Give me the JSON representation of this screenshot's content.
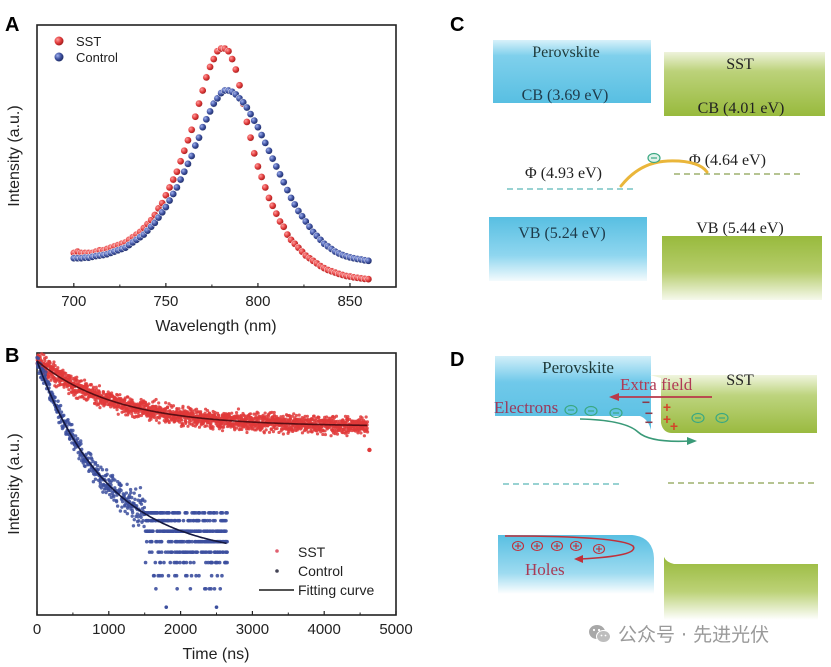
{
  "panels": {
    "A": {
      "letter": "A"
    },
    "B": {
      "letter": "B"
    },
    "C": {
      "letter": "C"
    },
    "D": {
      "letter": "D"
    }
  },
  "colors": {
    "sst_red": "#e03a3a",
    "control_blue": "#3c4f9e",
    "fit_dark": "#1a1a40",
    "perovskite_blue": "#5ec3e6",
    "sst_green": "#9dbf45",
    "arrow_orange": "#e8b030",
    "electron_green": "#3aa882",
    "text_red": "#b03040",
    "field_red": "#c0392b"
  },
  "chart_data": [
    {
      "id": "A",
      "type": "scatter",
      "title": "",
      "xlabel": "Wavelength (nm)",
      "ylabel": "Intensity (a.u.)",
      "xlim": [
        680,
        875
      ],
      "ylim": [
        0,
        1
      ],
      "xticks": [
        700,
        750,
        800,
        850
      ],
      "xtick_labels": [
        "700",
        "750",
        "800",
        "850"
      ],
      "yticks": [],
      "grid": false,
      "legend": {
        "position": "top-left",
        "entries": [
          "SST",
          "Control"
        ]
      },
      "x_start": 700,
      "x_step": 2,
      "series": [
        {
          "name": "SST",
          "color": "#e03a3a",
          "values": [
            0.13,
            0.135,
            0.13,
            0.13,
            0.13,
            0.13,
            0.135,
            0.14,
            0.14,
            0.145,
            0.15,
            0.155,
            0.16,
            0.165,
            0.17,
            0.18,
            0.19,
            0.2,
            0.21,
            0.225,
            0.24,
            0.255,
            0.275,
            0.3,
            0.32,
            0.35,
            0.38,
            0.41,
            0.44,
            0.48,
            0.52,
            0.56,
            0.6,
            0.65,
            0.7,
            0.75,
            0.8,
            0.84,
            0.87,
            0.9,
            0.91,
            0.91,
            0.9,
            0.87,
            0.83,
            0.77,
            0.7,
            0.63,
            0.57,
            0.51,
            0.46,
            0.42,
            0.38,
            0.34,
            0.31,
            0.28,
            0.25,
            0.23,
            0.2,
            0.18,
            0.165,
            0.15,
            0.135,
            0.12,
            0.11,
            0.1,
            0.09,
            0.08,
            0.072,
            0.065,
            0.06,
            0.055,
            0.05,
            0.046,
            0.042,
            0.04,
            0.037,
            0.035,
            0.033,
            0.031,
            0.03
          ]
        },
        {
          "name": "Control",
          "color": "#3c4f9e",
          "values": [
            0.11,
            0.11,
            0.11,
            0.112,
            0.112,
            0.115,
            0.118,
            0.12,
            0.122,
            0.125,
            0.13,
            0.135,
            0.14,
            0.145,
            0.15,
            0.16,
            0.17,
            0.18,
            0.19,
            0.2,
            0.215,
            0.23,
            0.245,
            0.265,
            0.285,
            0.305,
            0.33,
            0.355,
            0.38,
            0.41,
            0.44,
            0.47,
            0.5,
            0.54,
            0.57,
            0.61,
            0.64,
            0.67,
            0.7,
            0.72,
            0.74,
            0.75,
            0.75,
            0.745,
            0.735,
            0.72,
            0.705,
            0.685,
            0.66,
            0.635,
            0.61,
            0.58,
            0.55,
            0.52,
            0.49,
            0.46,
            0.43,
            0.4,
            0.37,
            0.34,
            0.315,
            0.29,
            0.27,
            0.25,
            0.23,
            0.21,
            0.195,
            0.18,
            0.165,
            0.155,
            0.145,
            0.135,
            0.128,
            0.122,
            0.117,
            0.113,
            0.11,
            0.107,
            0.105,
            0.102,
            0.1
          ]
        }
      ]
    },
    {
      "id": "B",
      "type": "scatter",
      "title": "",
      "xlabel": "Time (ns)",
      "ylabel": "Intensity (a.u.)",
      "xlim": [
        0,
        5000
      ],
      "ylim": [
        0,
        1
      ],
      "xticks": [
        0,
        1000,
        2000,
        3000,
        4000,
        5000
      ],
      "xtick_labels": [
        "0",
        "1000",
        "2000",
        "3000",
        "4000",
        "5000"
      ],
      "yticks": [],
      "grid": false,
      "legend": {
        "position": "bottom-right",
        "entries": [
          "SST",
          "Control",
          "Fitting curve"
        ]
      },
      "series": [
        {
          "name": "SST",
          "color": "#e03a3a",
          "t_range": [
            0,
            4600
          ],
          "fit": {
            "model": "y0 + A*exp(-t/tau)",
            "y0": 0.72,
            "A": 0.25,
            "tau_ns": 1100
          },
          "noise": 0.03,
          "outlier": [
            4630,
            0.63
          ]
        },
        {
          "name": "Control",
          "color": "#3c4f9e",
          "t_range": [
            0,
            2650
          ],
          "fit": {
            "model": "y0 + A*exp(-t/tau)",
            "y0": 0.22,
            "A": 0.75,
            "tau_ns": 1000
          },
          "noise": 0.06,
          "quantized_levels": [
            0.39,
            0.36,
            0.32,
            0.28,
            0.24,
            0.2,
            0.15,
            0.1,
            0.03
          ]
        },
        {
          "name": "Fitting curve",
          "color": "#1a1a40",
          "curves": [
            "SST",
            "Control"
          ]
        }
      ]
    }
  ],
  "diagram_C": {
    "perovskite_label": "Perovskite",
    "sst_label": "SST",
    "perovskite_cb": "CB (3.69 eV)",
    "sst_cb": "CB (4.01 eV)",
    "perovskite_phi": "Φ (4.93 eV)",
    "sst_phi": "Φ (4.64 eV)",
    "perovskite_vb": "VB (5.24 eV)",
    "sst_vb": "VB (5.44 eV)",
    "electron_symbol": "−"
  },
  "diagram_D": {
    "perovskite_label": "Perovskite",
    "sst_label": "SST",
    "extra_field_label": "Extra field",
    "electrons_label": "Electrons",
    "holes_label": "Holes",
    "minus_sign": "−",
    "plus_sign": "+"
  },
  "watermark": {
    "text": "公众号 · 先进光伏"
  }
}
